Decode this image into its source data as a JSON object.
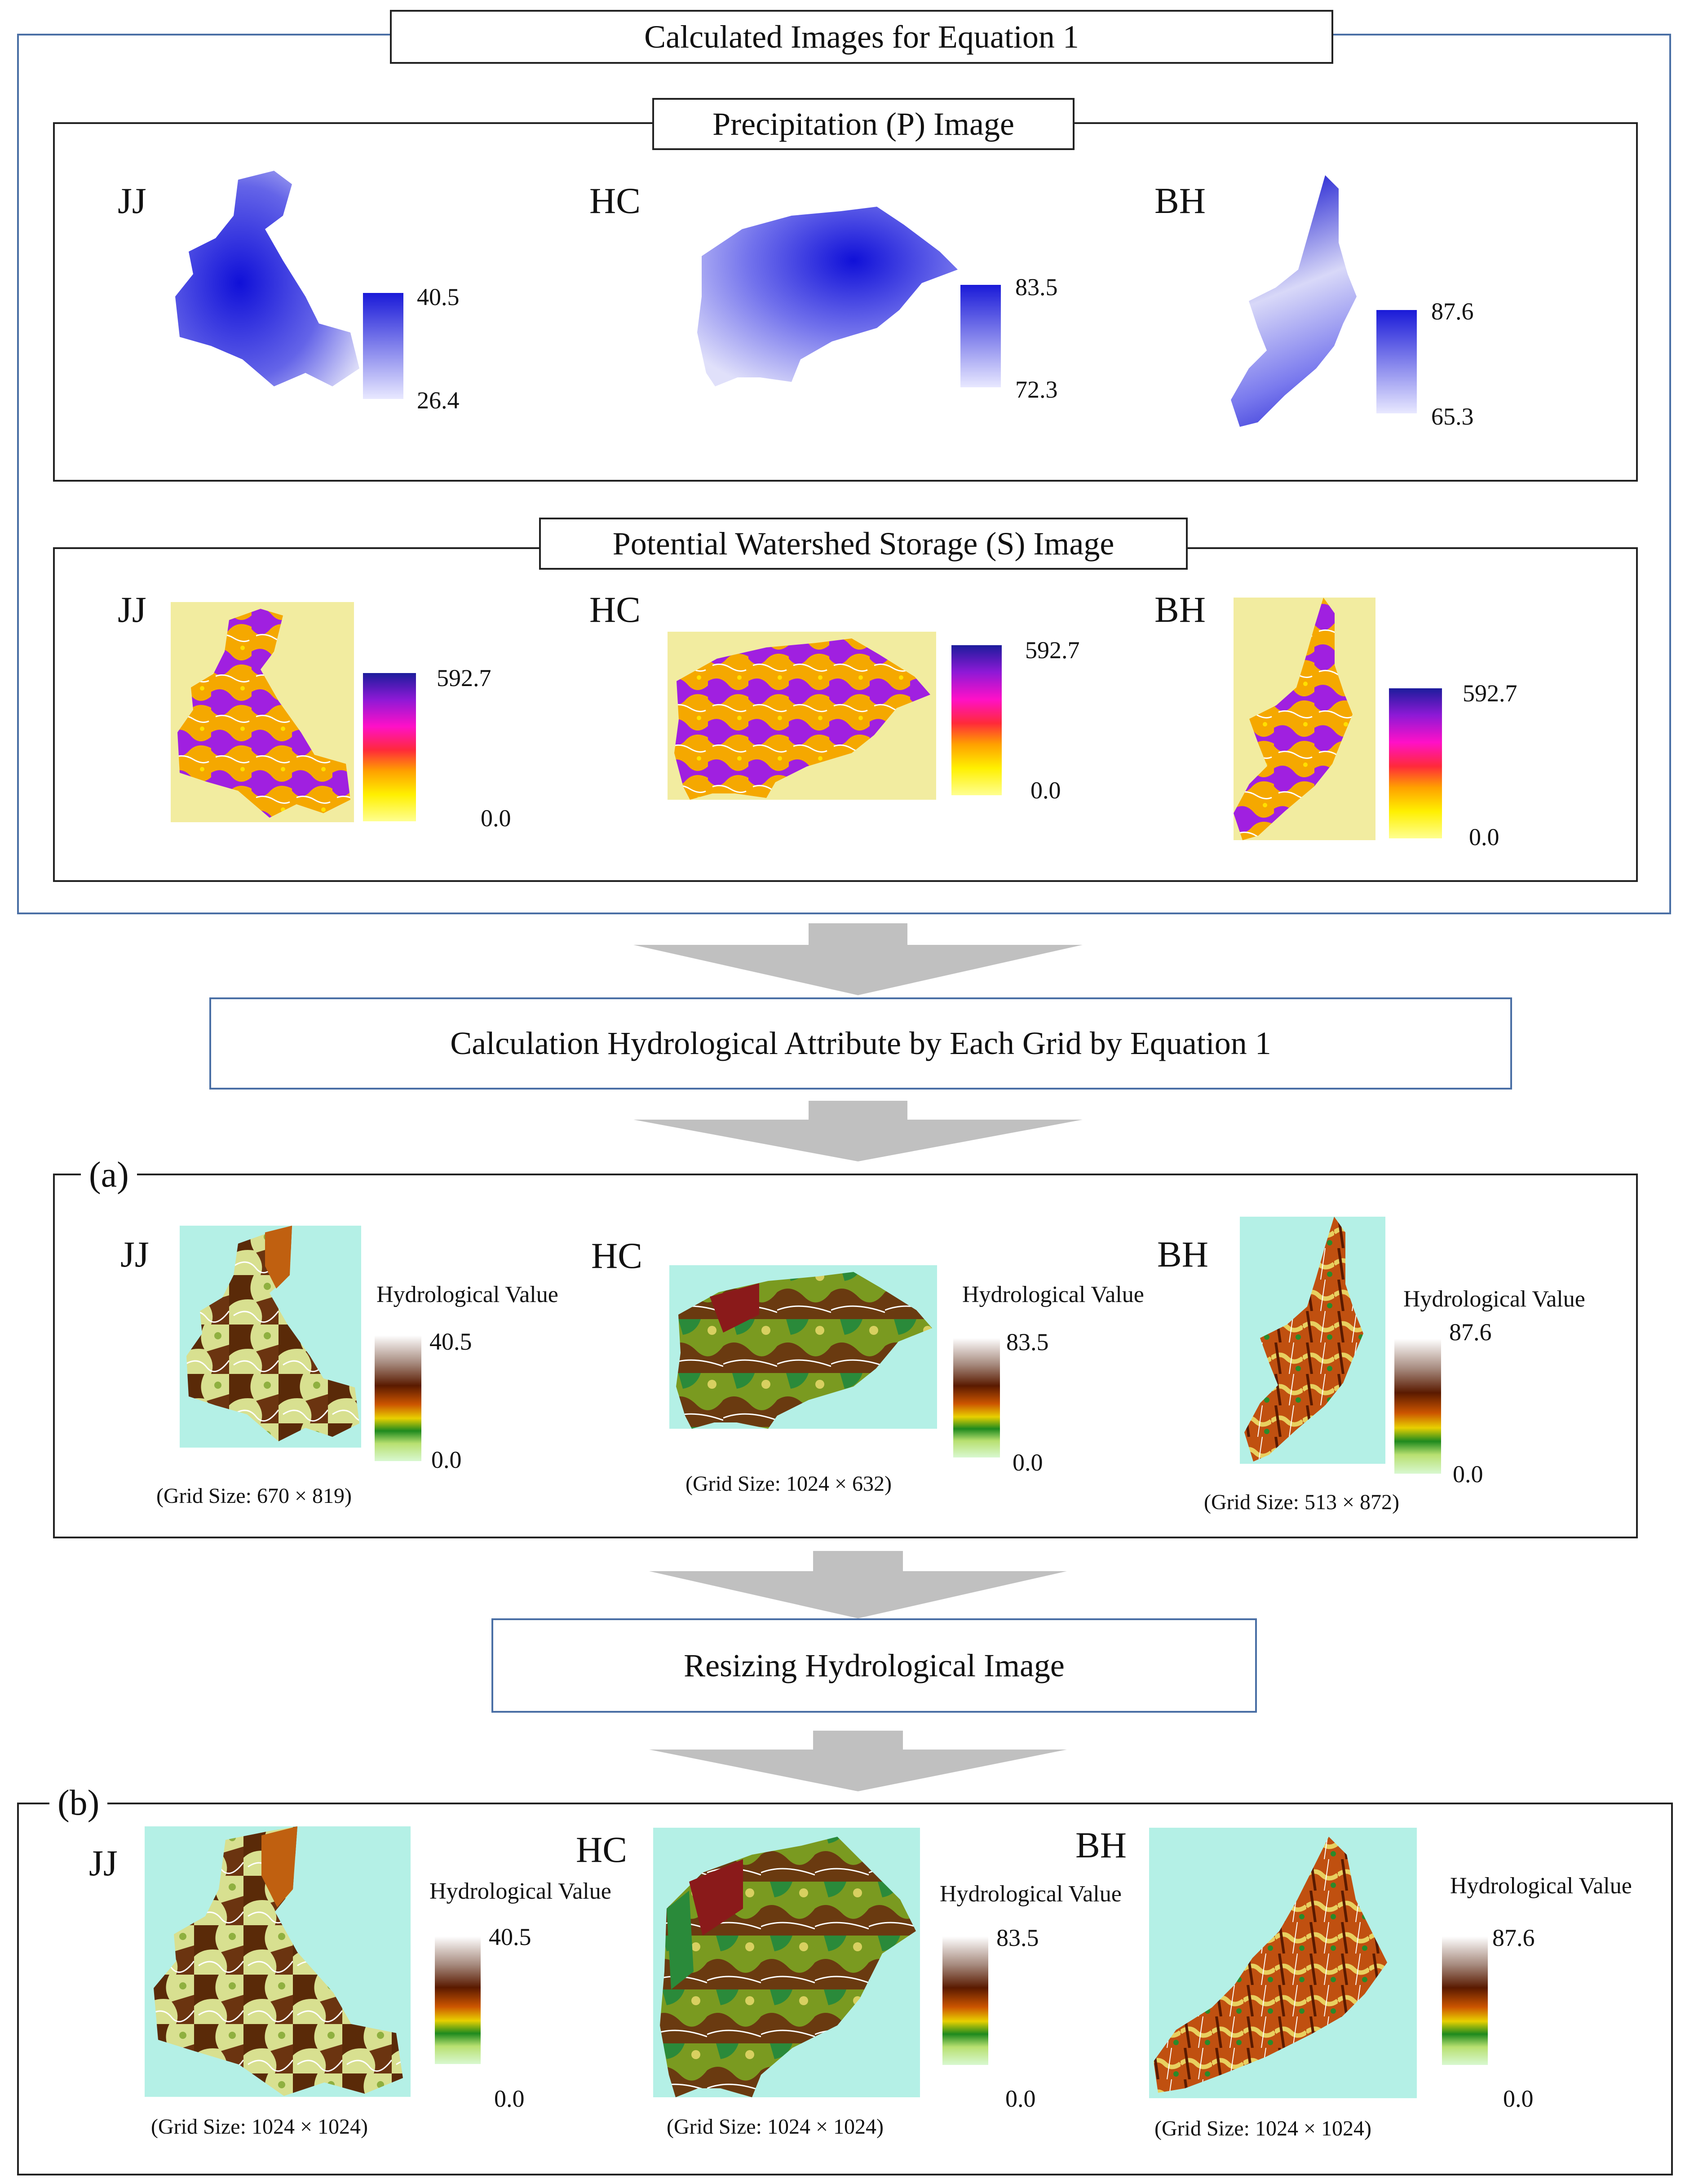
{
  "title": "Calculated Images for Equation 1",
  "precip": {
    "header": "Precipitation (P) Image",
    "items": [
      {
        "site": "JJ",
        "max": "40.5",
        "min": "26.4"
      },
      {
        "site": "HC",
        "max": "83.5",
        "min": "72.3"
      },
      {
        "site": "BH",
        "max": "87.6",
        "min": "65.3"
      }
    ]
  },
  "storage": {
    "header": "Potential Watershed Storage (S) Image",
    "items": [
      {
        "site": "JJ",
        "max": "592.7",
        "min": "0.0"
      },
      {
        "site": "HC",
        "max": "592.7",
        "min": "0.0"
      },
      {
        "site": "BH",
        "max": "592.7",
        "min": "0.0"
      }
    ]
  },
  "step1": "Calculation Hydrological Attribute by Each Grid by Equation 1",
  "panel_a": {
    "label": "(a)",
    "legend_title": "Hydrological Value",
    "items": [
      {
        "site": "JJ",
        "max": "40.5",
        "min": "0.0",
        "grid": "(Grid Size: 670 × 819)"
      },
      {
        "site": "HC",
        "max": "83.5",
        "min": "0.0",
        "grid": "(Grid Size: 1024 × 632)"
      },
      {
        "site": "BH",
        "max": "87.6",
        "min": "0.0",
        "grid": "(Grid Size: 513 × 872)"
      }
    ]
  },
  "step2": "Resizing Hydrological Image",
  "panel_b": {
    "label": "(b)",
    "legend_title": "Hydrological Value",
    "items": [
      {
        "site": "JJ",
        "max": "40.5",
        "min": "0.0",
        "grid": "(Grid Size: 1024 × 1024)"
      },
      {
        "site": "HC",
        "max": "83.5",
        "min": "0.0",
        "grid": "(Grid Size: 1024 × 1024)"
      },
      {
        "site": "BH",
        "max": "87.6",
        "min": "0.0",
        "grid": "(Grid Size: 1024 × 1024)"
      }
    ]
  },
  "colors": {
    "precip_dark": "#1010d0",
    "precip_light": "#e6e6fa",
    "storage_bg": "#f2eca0",
    "cyan_bg": "#b4f0e6",
    "arrow": "#c0c0c0",
    "frame_blue": "#4a6fa5"
  }
}
